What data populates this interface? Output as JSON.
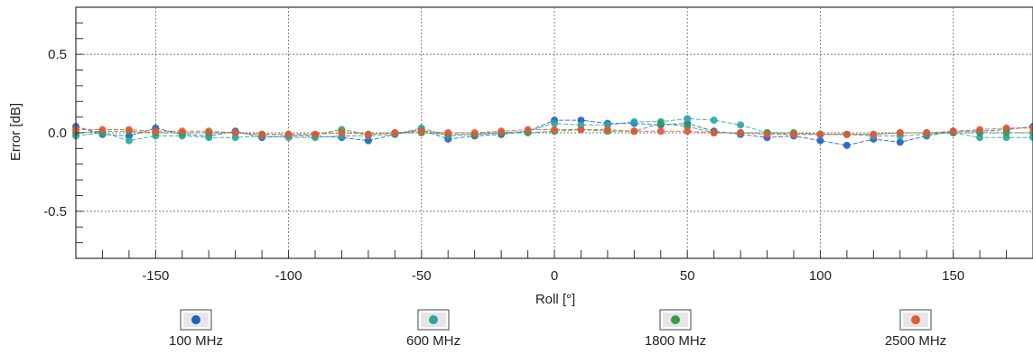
{
  "chart_data": {
    "type": "line",
    "title": "",
    "xlabel": "Roll [°]",
    "ylabel": "Error [dB]",
    "xlim": [
      -180,
      180
    ],
    "ylim": [
      -0.8,
      0.8
    ],
    "x_ticks": [
      -150,
      -100,
      -50,
      0,
      50,
      100,
      150
    ],
    "x_tick_labels": [
      "-150",
      "-100",
      "-50",
      "0",
      "50",
      "100",
      "150"
    ],
    "y_ticks": [
      0.5,
      0.0,
      -0.5
    ],
    "y_tick_labels": [
      "0.5",
      "0.0",
      "-0.5"
    ],
    "grid": true,
    "legend_position": "bottom",
    "x": [
      -180,
      -170,
      -160,
      -150,
      -140,
      -130,
      -120,
      -110,
      -100,
      -90,
      -80,
      -70,
      -60,
      -50,
      -40,
      -30,
      -20,
      -10,
      0,
      10,
      20,
      30,
      40,
      50,
      60,
      70,
      80,
      90,
      100,
      110,
      120,
      130,
      140,
      150,
      160,
      170,
      180
    ],
    "series": [
      {
        "name": "100 MHz",
        "color": "#1f5fbf",
        "values": [
          0.04,
          -0.01,
          -0.02,
          0.03,
          -0.01,
          -0.02,
          0.01,
          -0.03,
          -0.02,
          -0.02,
          -0.03,
          -0.05,
          -0.01,
          0.02,
          -0.04,
          -0.02,
          -0.01,
          0.01,
          0.08,
          0.08,
          0.06,
          0.06,
          0.05,
          0.06,
          0.01,
          -0.01,
          -0.03,
          -0.02,
          -0.05,
          -0.08,
          -0.04,
          -0.06,
          -0.02,
          0.01,
          0.01,
          0.02,
          0.04
        ]
      },
      {
        "name": "600 MHz",
        "color": "#2aa6a6",
        "values": [
          -0.02,
          0.0,
          -0.05,
          -0.02,
          -0.02,
          -0.03,
          -0.03,
          -0.02,
          -0.03,
          -0.03,
          -0.02,
          -0.02,
          -0.01,
          0.03,
          -0.02,
          -0.01,
          0.0,
          0.01,
          0.06,
          0.05,
          0.05,
          0.07,
          0.07,
          0.09,
          0.08,
          0.05,
          0.0,
          -0.01,
          -0.01,
          -0.01,
          -0.02,
          -0.02,
          -0.01,
          0.0,
          -0.03,
          -0.03,
          -0.03
        ]
      },
      {
        "name": "1800 MHz",
        "color": "#3a9a4a",
        "values": [
          0.0,
          0.01,
          0.01,
          0.0,
          0.0,
          0.0,
          0.0,
          -0.01,
          -0.01,
          -0.01,
          0.02,
          -0.01,
          0.0,
          0.0,
          -0.01,
          -0.01,
          0.0,
          0.0,
          0.01,
          0.02,
          0.01,
          0.01,
          0.06,
          0.04,
          0.0,
          0.0,
          0.0,
          0.0,
          -0.01,
          -0.01,
          -0.01,
          0.0,
          0.0,
          0.0,
          0.0,
          0.0,
          0.0
        ]
      },
      {
        "name": "2500 MHz",
        "color": "#e05a3a",
        "values": [
          0.02,
          0.02,
          0.02,
          0.01,
          0.01,
          0.01,
          0.0,
          -0.01,
          -0.01,
          -0.01,
          0.0,
          -0.01,
          0.0,
          0.01,
          0.0,
          0.0,
          0.01,
          0.02,
          0.02,
          0.02,
          0.02,
          0.01,
          0.01,
          0.01,
          0.0,
          0.0,
          -0.01,
          -0.01,
          -0.01,
          -0.01,
          -0.01,
          0.0,
          0.0,
          0.01,
          0.02,
          0.03,
          0.03
        ]
      }
    ]
  }
}
